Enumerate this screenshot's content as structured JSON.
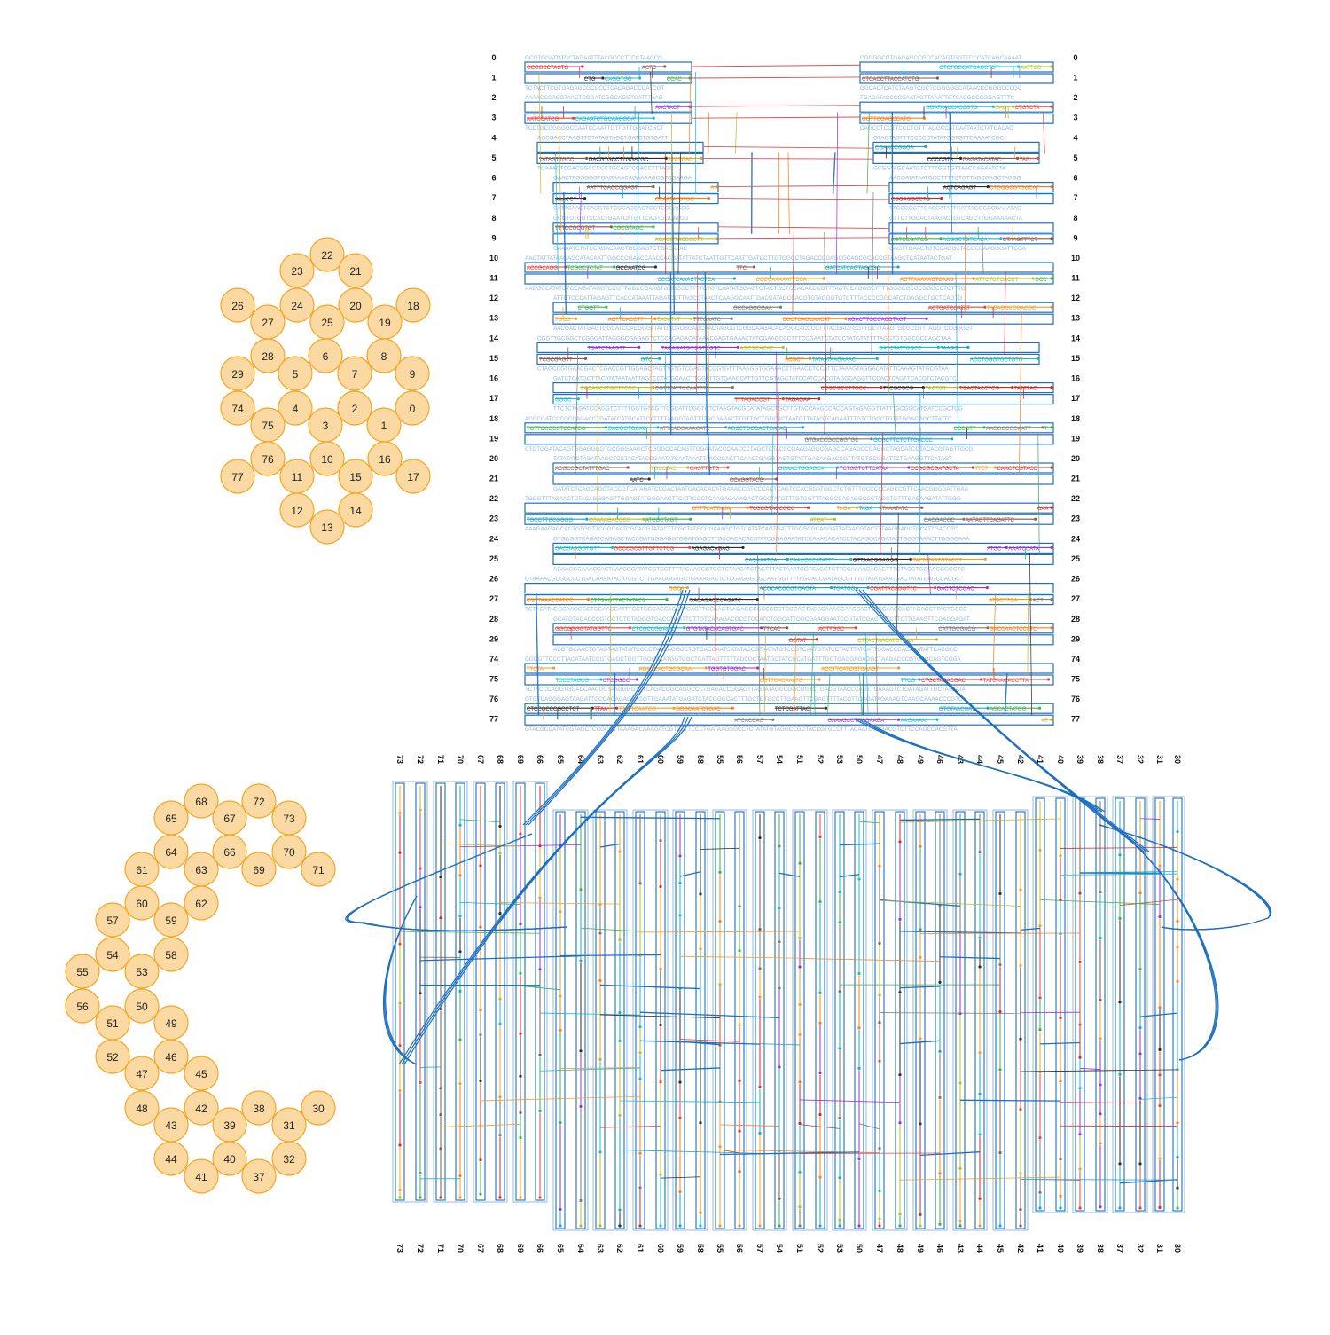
{
  "colors": {
    "helix_fill": "#fbd9a3",
    "helix_stroke": "#f5a623",
    "scaffold": "#1f6fc0",
    "staples": [
      "#e8463a",
      "#f0a020",
      "#3ab34a",
      "#9b30d9",
      "#1aa7c9",
      "#ff7f0e",
      "#7a7a7a",
      "#2c2c2c",
      "#d62728",
      "#17becf",
      "#bcbd22",
      "#8c564b"
    ]
  },
  "top_lattice": {
    "helices": [
      "22",
      "23",
      "21",
      "26",
      "24",
      "20",
      "18",
      "27",
      "25",
      "19",
      "28",
      "6",
      "8",
      "29",
      "5",
      "7",
      "9",
      "74",
      "4",
      "2",
      "0",
      "75",
      "3",
      "1",
      "76",
      "10",
      "16",
      "77",
      "11",
      "15",
      "17",
      "12",
      "14",
      "13"
    ]
  },
  "bottom_lattice": {
    "helices": [
      "68",
      "72",
      "65",
      "67",
      "73",
      "64",
      "66",
      "70",
      "61",
      "63",
      "69",
      "71",
      "62",
      "60",
      "57",
      "59",
      "54",
      "58",
      "55",
      "53",
      "50",
      "56",
      "49",
      "51",
      "46",
      "52",
      "45",
      "47",
      "42",
      "38",
      "30",
      "48",
      "39",
      "43",
      "31",
      "40",
      "44",
      "32",
      "41",
      "37"
    ]
  },
  "top_rows": {
    "labels": [
      "0",
      "1",
      "2",
      "3",
      "4",
      "5",
      "6",
      "7",
      "8",
      "9",
      "10",
      "11",
      "12",
      "13",
      "14",
      "15",
      "16",
      "17",
      "18",
      "19",
      "20",
      "21",
      "22",
      "23",
      "24",
      "25",
      "26",
      "27",
      "28",
      "29",
      "74",
      "75",
      "76",
      "77"
    ]
  },
  "bottom_columns": {
    "labels": [
      "73",
      "72",
      "71",
      "70",
      "67",
      "68",
      "69",
      "66",
      "65",
      "64",
      "63",
      "62",
      "61",
      "60",
      "59",
      "58",
      "55",
      "56",
      "57",
      "54",
      "51",
      "52",
      "53",
      "50",
      "47",
      "48",
      "49",
      "46",
      "43",
      "44",
      "45",
      "42",
      "41",
      "40",
      "39",
      "38",
      "37",
      "32",
      "31",
      "30"
    ]
  }
}
